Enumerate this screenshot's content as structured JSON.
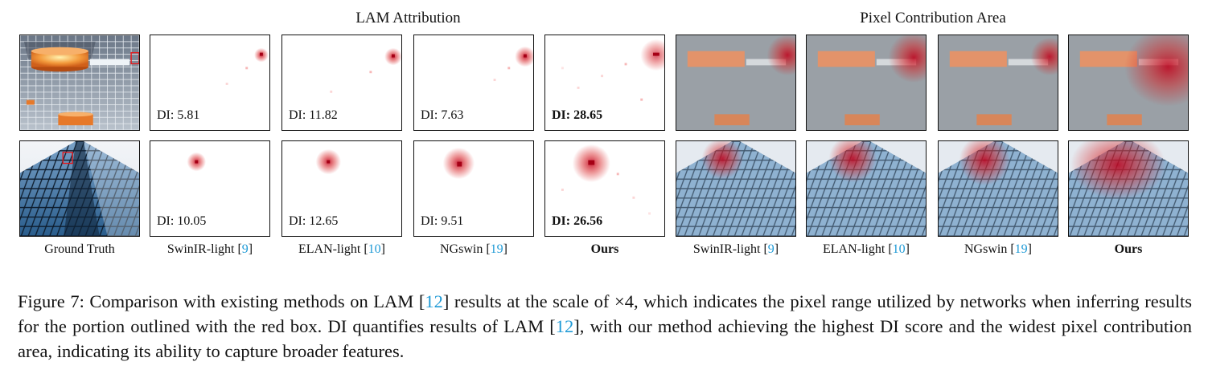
{
  "headers": {
    "left": "LAM Attribution",
    "right": "Pixel Contribution Area"
  },
  "columns": [
    {
      "label": "Ground Truth",
      "ref": ""
    },
    {
      "label": "SwinIR-light",
      "ref": "9"
    },
    {
      "label": "ELAN-light",
      "ref": "10"
    },
    {
      "label": "NGswin",
      "ref": "19"
    },
    {
      "label": "Ours",
      "ref": ""
    },
    {
      "label": "SwinIR-light",
      "ref": "9"
    },
    {
      "label": "ELAN-light",
      "ref": "10"
    },
    {
      "label": "NGswin",
      "ref": "19"
    },
    {
      "label": "Ours",
      "ref": ""
    }
  ],
  "rows": [
    {
      "di": [
        "DI: 5.81",
        "DI: 11.82",
        "DI: 7.63",
        "DI: 28.65"
      ]
    },
    {
      "di": [
        "DI: 10.05",
        "DI: 12.65",
        "DI: 9.51",
        "DI: 26.56"
      ]
    }
  ],
  "caption": {
    "prefix": "Figure 7: Comparison with existing methods on LAM [",
    "ref1": "12",
    "middle": "] results at the scale of ×4, which indicates the pixel range utilized by networks when inferring results for the portion outlined with the red box. DI quantifies results of LAM [",
    "ref2": "12",
    "suffix": "], with our method achieving the highest DI score and the widest pixel contribution area, indicating its ability to capture broader features."
  },
  "colors": {
    "ref": "#1f9ad6",
    "attribution": "#d7191c",
    "highlight_box": "#e31a1c"
  }
}
